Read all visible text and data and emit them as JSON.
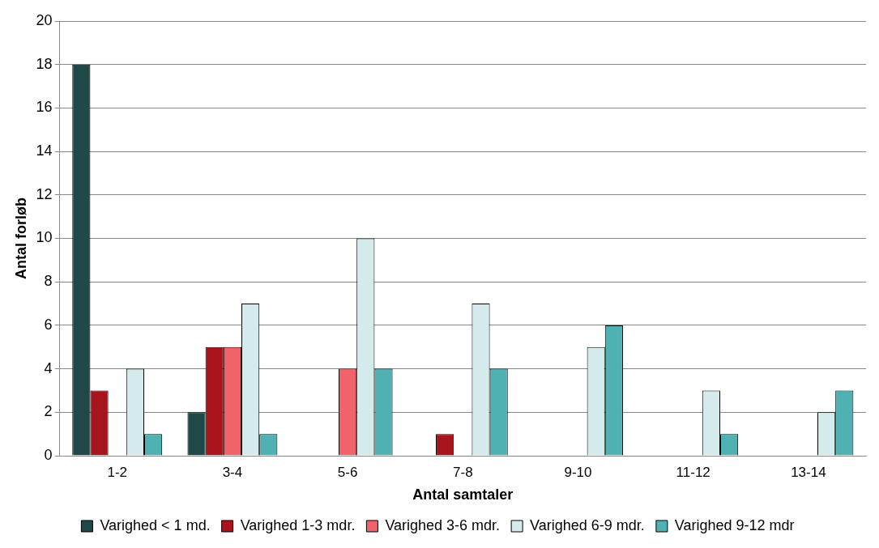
{
  "chart_data": {
    "type": "bar",
    "xlabel": "Antal samtaler",
    "ylabel": "Antal forløb",
    "categories": [
      "1-2",
      "3-4",
      "5-6",
      "7-8",
      "9-10",
      "11-12",
      "13-14"
    ],
    "series": [
      {
        "name": "Varighed < 1 md.",
        "color": "#1f4848",
        "values": [
          18,
          2,
          0,
          0,
          0,
          0,
          0
        ]
      },
      {
        "name": "Varighed 1-3 mdr.",
        "color": "#a8141c",
        "values": [
          3,
          5,
          0,
          1,
          0,
          0,
          0
        ]
      },
      {
        "name": "Varighed 3-6 mdr.",
        "color": "#f0636b",
        "values": [
          0,
          5,
          4,
          0,
          0,
          0,
          0
        ]
      },
      {
        "name": "Varighed 6-9 mdr.",
        "color": "#d5ebeb",
        "values": [
          4,
          7,
          10,
          7,
          5,
          3,
          2
        ]
      },
      {
        "name": "Varighed 9-12 mdr",
        "color": "#4fb1b1",
        "values": [
          1,
          1,
          4,
          4,
          6,
          1,
          3
        ]
      }
    ],
    "ylim": [
      0,
      20
    ],
    "yticks": [
      0,
      2,
      4,
      6,
      8,
      10,
      12,
      14,
      16,
      18,
      20
    ],
    "grid": "y",
    "legend": "bottom"
  }
}
